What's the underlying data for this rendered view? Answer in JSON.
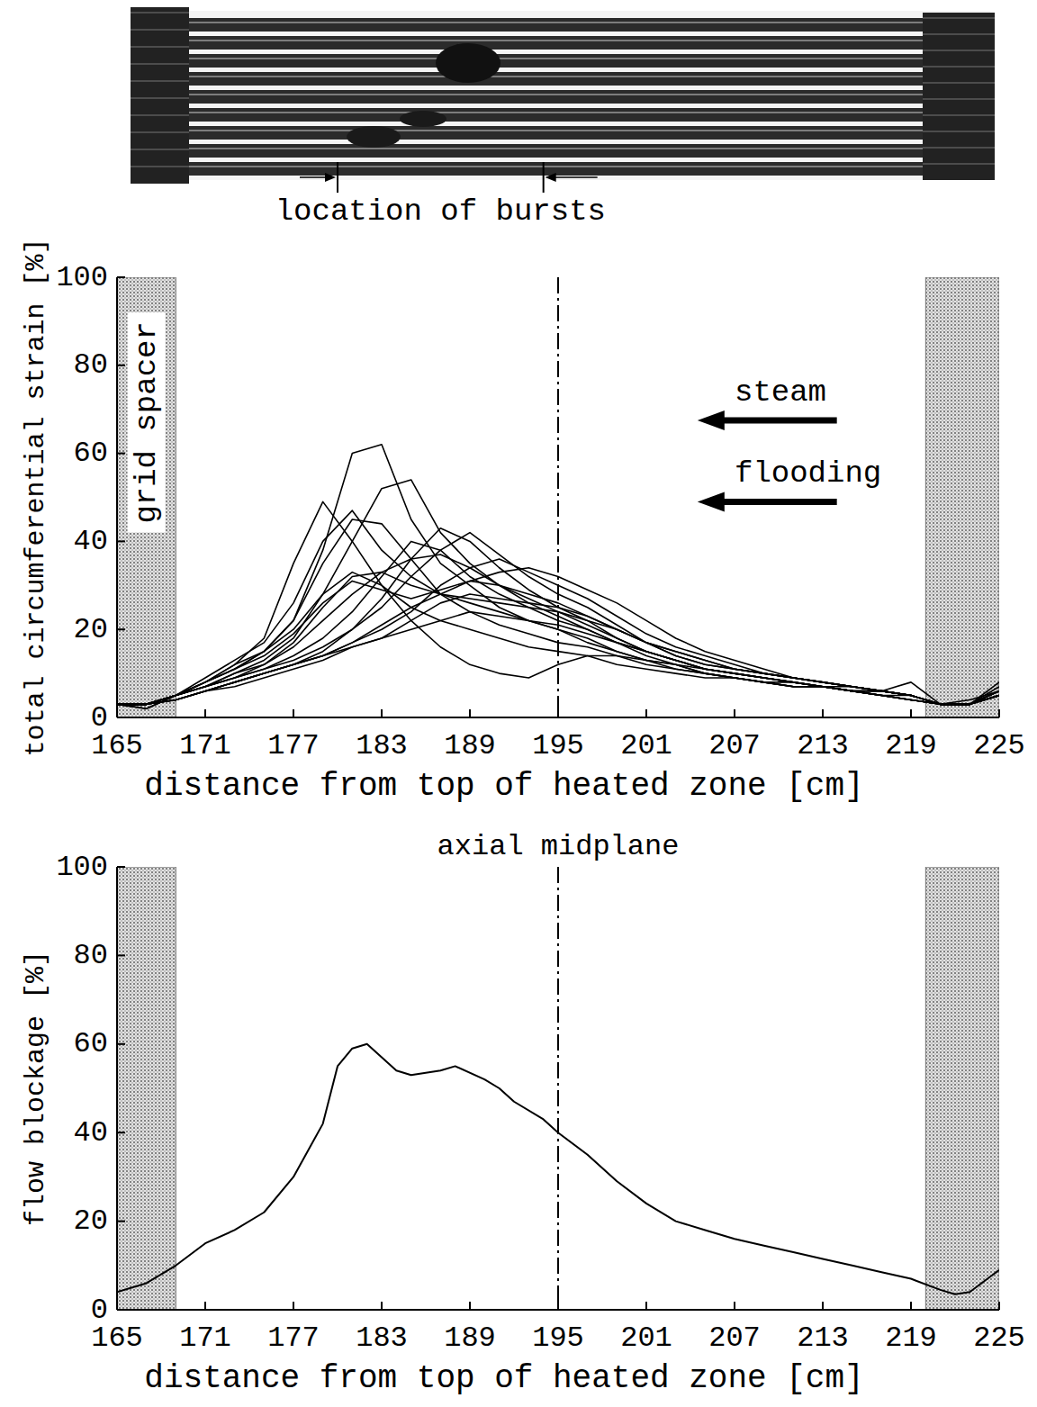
{
  "chart_data": [
    {
      "type": "line",
      "x_label": "distance from top of heated zone [cm]",
      "y_label": "total circumferential strain [%]",
      "xlim": [
        165,
        225
      ],
      "xticks": [
        165,
        171,
        177,
        183,
        189,
        195,
        201,
        207,
        213,
        219,
        225
      ],
      "ylim": [
        0,
        100
      ],
      "yticks": [
        0,
        20,
        40,
        60,
        80,
        100
      ],
      "grid": false,
      "color": "#000000",
      "burst_label": "location of bursts",
      "burst_range": [
        180,
        194
      ],
      "grid_spacer_label": "grid spacer",
      "grid_spacers": [
        [
          165,
          169
        ],
        [
          220,
          225
        ]
      ],
      "midplane": 195,
      "flow_arrows": [
        "steam",
        "flooding"
      ],
      "x": [
        165,
        167,
        169,
        171,
        173,
        175,
        177,
        179,
        181,
        183,
        185,
        187,
        189,
        191,
        193,
        195,
        197,
        199,
        201,
        203,
        205,
        207,
        209,
        211,
        213,
        215,
        217,
        219,
        221,
        223,
        225
      ],
      "series": [
        {
          "values": [
            3,
            3,
            5,
            8,
            11,
            15,
            22,
            38,
            60,
            62,
            45,
            35,
            30,
            25,
            22,
            20,
            17,
            15,
            13,
            11,
            10,
            9,
            8,
            7,
            7,
            6,
            5,
            4,
            3,
            4,
            6
          ]
        },
        {
          "values": [
            3,
            2,
            5,
            8,
            12,
            18,
            35,
            49,
            40,
            30,
            25,
            22,
            20,
            18,
            16,
            15,
            14,
            12,
            11,
            10,
            9,
            9,
            8,
            7,
            7,
            6,
            5,
            4,
            3,
            3,
            5
          ]
        },
        {
          "values": [
            3,
            3,
            5,
            7,
            10,
            13,
            18,
            28,
            40,
            52,
            54,
            42,
            35,
            30,
            26,
            23,
            20,
            17,
            14,
            12,
            11,
            10,
            9,
            8,
            7,
            6,
            5,
            4,
            3,
            3,
            6
          ]
        },
        {
          "values": [
            3,
            3,
            4,
            6,
            8,
            10,
            12,
            15,
            20,
            27,
            36,
            43,
            40,
            34,
            29,
            25,
            22,
            18,
            15,
            13,
            11,
            10,
            9,
            8,
            7,
            6,
            6,
            5,
            3,
            3,
            5
          ]
        },
        {
          "values": [
            3,
            2,
            5,
            9,
            13,
            17,
            26,
            40,
            47,
            38,
            32,
            28,
            26,
            24,
            22,
            20,
            18,
            15,
            13,
            12,
            10,
            9,
            8,
            8,
            7,
            6,
            5,
            4,
            3,
            3,
            5
          ]
        },
        {
          "values": [
            3,
            3,
            5,
            8,
            12,
            15,
            20,
            28,
            33,
            30,
            22,
            16,
            12,
            10,
            9,
            12,
            14,
            14,
            13,
            12,
            10,
            9,
            8,
            7,
            7,
            6,
            5,
            5,
            3,
            3,
            6
          ]
        },
        {
          "values": [
            3,
            3,
            5,
            7,
            9,
            11,
            14,
            18,
            24,
            32,
            40,
            38,
            32,
            28,
            25,
            22,
            20,
            17,
            15,
            13,
            11,
            10,
            9,
            8,
            7,
            6,
            6,
            5,
            3,
            3,
            5
          ]
        },
        {
          "values": [
            3,
            3,
            4,
            6,
            8,
            10,
            12,
            14,
            17,
            20,
            24,
            30,
            34,
            36,
            33,
            30,
            27,
            23,
            19,
            16,
            14,
            12,
            10,
            9,
            8,
            7,
            6,
            5,
            3,
            3,
            6
          ]
        },
        {
          "values": [
            3,
            3,
            5,
            7,
            9,
            12,
            17,
            25,
            32,
            33,
            30,
            28,
            27,
            26,
            25,
            24,
            22,
            20,
            17,
            15,
            13,
            11,
            10,
            9,
            8,
            7,
            6,
            5,
            3,
            3,
            5
          ]
        },
        {
          "values": [
            3,
            3,
            5,
            7,
            9,
            11,
            13,
            16,
            20,
            25,
            32,
            38,
            42,
            37,
            32,
            28,
            25,
            21,
            17,
            14,
            12,
            11,
            10,
            9,
            8,
            7,
            6,
            5,
            3,
            3,
            6
          ]
        },
        {
          "values": [
            3,
            3,
            4,
            6,
            8,
            10,
            12,
            14,
            17,
            21,
            25,
            28,
            31,
            33,
            34,
            32,
            29,
            26,
            22,
            18,
            15,
            13,
            11,
            9,
            8,
            7,
            6,
            5,
            3,
            3,
            5
          ]
        },
        {
          "values": [
            3,
            3,
            4,
            6,
            7,
            9,
            11,
            13,
            16,
            18,
            20,
            22,
            24,
            23,
            22,
            21,
            19,
            17,
            15,
            13,
            11,
            10,
            9,
            8,
            7,
            7,
            6,
            5,
            3,
            3,
            7
          ]
        },
        {
          "values": [
            3,
            3,
            5,
            8,
            11,
            15,
            22,
            35,
            45,
            44,
            36,
            28,
            24,
            21,
            19,
            17,
            16,
            14,
            12,
            11,
            10,
            9,
            8,
            7,
            7,
            6,
            5,
            4,
            3,
            3,
            5
          ]
        },
        {
          "values": [
            3,
            3,
            5,
            7,
            10,
            12,
            16,
            22,
            28,
            33,
            36,
            37,
            34,
            30,
            27,
            24,
            21,
            18,
            15,
            13,
            11,
            10,
            9,
            8,
            7,
            6,
            6,
            8,
            3,
            3,
            6
          ]
        },
        {
          "values": [
            3,
            3,
            5,
            8,
            11,
            14,
            19,
            26,
            31,
            29,
            27,
            29,
            31,
            30,
            28,
            26,
            23,
            20,
            17,
            14,
            12,
            11,
            10,
            9,
            8,
            7,
            6,
            5,
            3,
            3,
            8
          ]
        },
        {
          "values": [
            3,
            3,
            4,
            6,
            8,
            10,
            12,
            14,
            16,
            18,
            22,
            26,
            28,
            27,
            26,
            25,
            23,
            20,
            17,
            15,
            13,
            11,
            10,
            9,
            8,
            7,
            6,
            5,
            3,
            3,
            6
          ]
        }
      ]
    },
    {
      "type": "line",
      "x_label": "distance from top of heated zone [cm]",
      "y_label": "flow blockage [%]",
      "xlim": [
        165,
        225
      ],
      "xticks": [
        165,
        171,
        177,
        183,
        189,
        195,
        201,
        207,
        213,
        219,
        225
      ],
      "ylim": [
        0,
        100
      ],
      "yticks": [
        0,
        20,
        40,
        60,
        80,
        100
      ],
      "grid": false,
      "color": "#000000",
      "grid_spacers": [
        [
          165,
          169
        ],
        [
          220,
          225
        ]
      ],
      "midplane": 195,
      "midplane_label": "axial midplane",
      "x": [
        165,
        167,
        169,
        171,
        173,
        175,
        177,
        179,
        180,
        181,
        182,
        183,
        184,
        185,
        187,
        188,
        190,
        191,
        192,
        194,
        195,
        197,
        199,
        201,
        203,
        205,
        207,
        209,
        211,
        213,
        215,
        217,
        219,
        221,
        222,
        223,
        225
      ],
      "series": [
        {
          "values": [
            4,
            6,
            10,
            15,
            18,
            22,
            30,
            42,
            55,
            59,
            60,
            57,
            54,
            53,
            54,
            55,
            52,
            50,
            47,
            43,
            40,
            35,
            29,
            24,
            20,
            18,
            16,
            14.5,
            13,
            11.5,
            10,
            8.5,
            7,
            4.5,
            3.5,
            4,
            9
          ]
        }
      ]
    }
  ]
}
